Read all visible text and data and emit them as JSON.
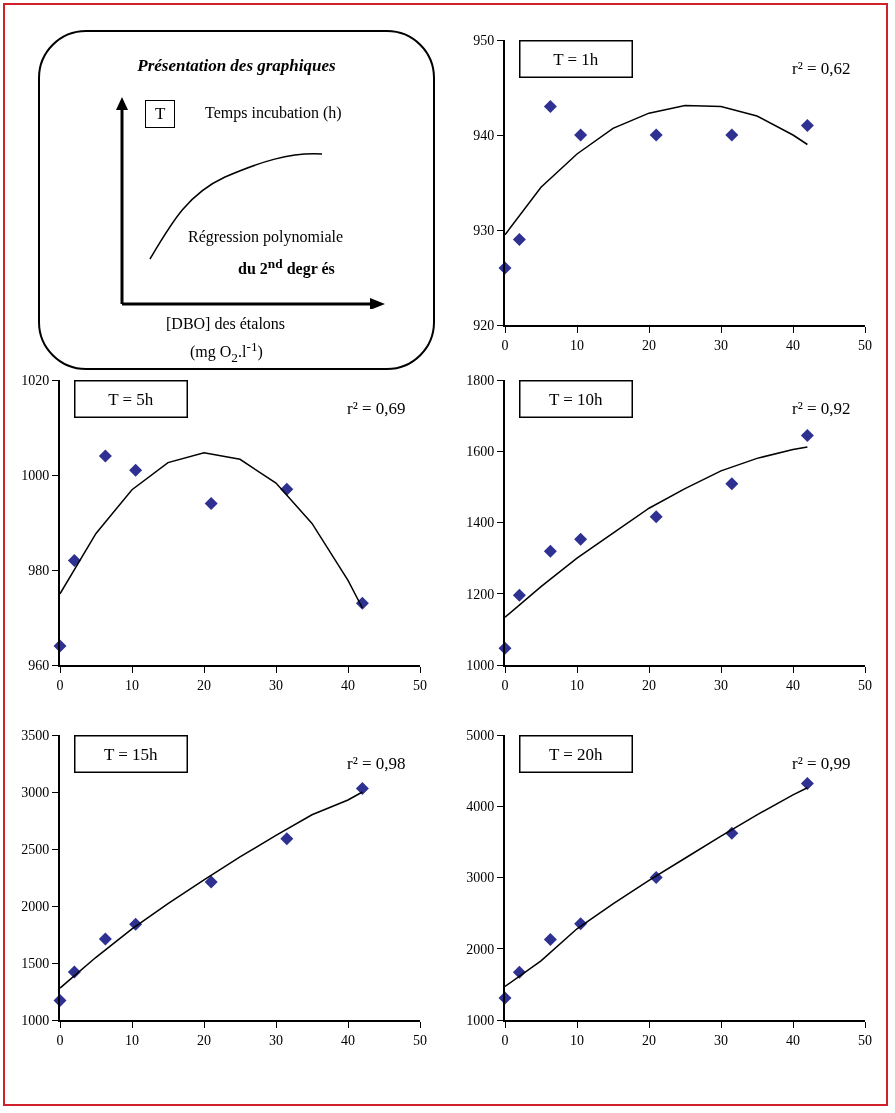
{
  "chart_data": [
    {
      "type": "other",
      "title": "Présentation des graphiques",
      "annotations": [
        "T",
        "Temps incubation (h)",
        "Régression polynomiale",
        "du 2$^{nd}$ degr és",
        "[DBO] des étalons",
        "(mg O$_{2}$.l$^{-1}$)"
      ]
    },
    {
      "type": "scatter",
      "annotations": [
        "T = 1h",
        "r² = 0,62"
      ],
      "x": [
        0,
        2,
        6.3,
        10.5,
        21,
        31.5,
        42
      ],
      "xlim": [
        0,
        50
      ],
      "xticks": [
        0,
        10,
        20,
        30,
        40,
        50
      ],
      "ylim": [
        920,
        950
      ],
      "yticks": [
        920,
        930,
        940,
        950
      ],
      "grid": false,
      "series": [
        {
          "type": "scatter",
          "marker": "diamond",
          "color": "#2e3192",
          "values": [
            926,
            929,
            943,
            940,
            940,
            940,
            941
          ]
        },
        {
          "type": "line",
          "marker": "none",
          "color": "#000000",
          "x": [
            0,
            5,
            10,
            15,
            20,
            25,
            30,
            35,
            40,
            42
          ],
          "values": [
            929.5,
            934.5,
            938,
            940.7,
            942.3,
            943.1,
            943,
            942,
            940,
            939
          ]
        }
      ]
    },
    {
      "type": "scatter",
      "annotations": [
        "T = 5h",
        "r² = 0,69"
      ],
      "x": [
        0,
        2,
        6.3,
        10.5,
        21,
        31.5,
        42
      ],
      "xlim": [
        0,
        50
      ],
      "xticks": [
        0,
        10,
        20,
        30,
        40,
        50
      ],
      "ylim": [
        960,
        1020
      ],
      "yticks": [
        960,
        980,
        1000,
        1020
      ],
      "grid": false,
      "series": [
        {
          "type": "scatter",
          "marker": "diamond",
          "color": "#2e3192",
          "values": [
            964,
            982,
            1004,
            1001,
            994,
            997,
            973
          ]
        },
        {
          "type": "line",
          "marker": "none",
          "color": "#000000",
          "x": [
            0,
            5,
            10,
            15,
            20,
            25,
            30,
            35,
            40,
            42
          ],
          "values": [
            975,
            987.7,
            996.9,
            1002.6,
            1004.7,
            1003.3,
            998.3,
            989.8,
            977.8,
            972
          ]
        }
      ]
    },
    {
      "type": "scatter",
      "annotations": [
        "T = 10h",
        "r² = 0,92"
      ],
      "x": [
        0,
        2,
        6.3,
        10.5,
        21,
        31.5,
        42
      ],
      "xlim": [
        0,
        50
      ],
      "xticks": [
        0,
        10,
        20,
        30,
        40,
        50
      ],
      "ylim": [
        1000,
        1800
      ],
      "yticks": [
        1000,
        1200,
        1400,
        1600,
        1800
      ],
      "grid": false,
      "series": [
        {
          "type": "scatter",
          "marker": "diamond",
          "color": "#2e3192",
          "values": [
            1047,
            1196,
            1319,
            1353,
            1416,
            1509,
            1644
          ]
        },
        {
          "type": "line",
          "marker": "none",
          "color": "#000000",
          "x": [
            0,
            5,
            10,
            15,
            20,
            25,
            30,
            35,
            40,
            42
          ],
          "values": [
            1134,
            1220,
            1300,
            1370,
            1440,
            1495,
            1545,
            1580,
            1605,
            1612
          ]
        }
      ]
    },
    {
      "type": "scatter",
      "annotations": [
        "T = 15h",
        "r² = 0,98"
      ],
      "x": [
        0,
        2,
        6.3,
        10.5,
        21,
        31.5,
        42
      ],
      "xlim": [
        0,
        50
      ],
      "xticks": [
        0,
        10,
        20,
        30,
        40,
        50
      ],
      "ylim": [
        1000,
        3500
      ],
      "yticks": [
        1000,
        1500,
        2000,
        2500,
        3000,
        3500
      ],
      "grid": false,
      "series": [
        {
          "type": "scatter",
          "marker": "diamond",
          "color": "#2e3192",
          "values": [
            1170,
            1420,
            1710,
            1840,
            2210,
            2590,
            3030
          ]
        },
        {
          "type": "line",
          "marker": "none",
          "color": "#000000",
          "x": [
            0,
            5,
            10,
            15,
            20,
            25,
            30,
            35,
            40,
            42
          ],
          "values": [
            1280,
            1550,
            1800,
            2020,
            2230,
            2430,
            2620,
            2800,
            2930,
            3000
          ]
        }
      ]
    },
    {
      "type": "scatter",
      "annotations": [
        "T = 20h",
        "r² = 0,99"
      ],
      "x": [
        0,
        2,
        6.3,
        10.5,
        21,
        31.5,
        42
      ],
      "xlim": [
        0,
        50
      ],
      "xticks": [
        0,
        10,
        20,
        30,
        40,
        50
      ],
      "ylim": [
        1000,
        5000
      ],
      "yticks": [
        1000,
        2000,
        3000,
        4000,
        5000
      ],
      "grid": false,
      "series": [
        {
          "type": "scatter",
          "marker": "diamond",
          "color": "#2e3192",
          "values": [
            1310,
            1670,
            2130,
            2350,
            3000,
            3620,
            4320
          ]
        },
        {
          "type": "line",
          "marker": "none",
          "color": "#000000",
          "x": [
            0,
            5,
            10,
            15,
            20,
            25,
            30,
            35,
            40,
            42
          ],
          "values": [
            1470,
            1830,
            2280,
            2630,
            2960,
            3270,
            3580,
            3880,
            4160,
            4260
          ]
        }
      ]
    }
  ]
}
